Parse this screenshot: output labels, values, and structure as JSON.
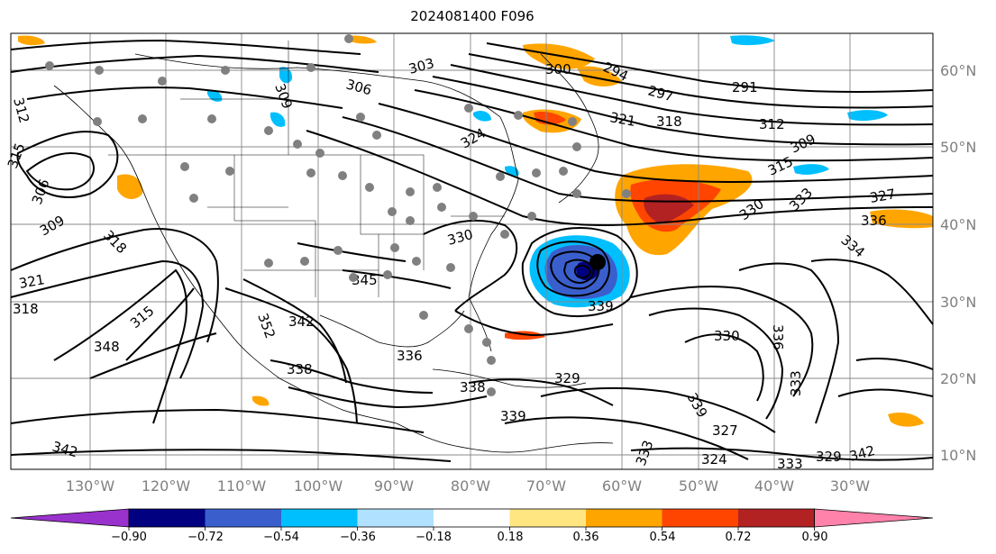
{
  "title": "2024081400 F096",
  "map": {
    "lon_labels": [
      "130°W",
      "120°W",
      "110°W",
      "100°W",
      "90°W",
      "80°W",
      "70°W",
      "60°W",
      "50°W",
      "40°W",
      "30°W"
    ],
    "lat_labels": [
      "60°N",
      "50°N",
      "40°N",
      "30°N",
      "20°N",
      "10°N"
    ],
    "contour_labels": [
      "312",
      "303",
      "309",
      "306",
      "300",
      "294",
      "297",
      "291",
      "312",
      "324",
      "321",
      "318",
      "315",
      "306",
      "309",
      "315",
      "309",
      "327",
      "330",
      "333",
      "336",
      "334",
      "318",
      "321",
      "318",
      "315",
      "348",
      "345",
      "342",
      "352",
      "338",
      "336",
      "330",
      "339",
      "338",
      "329",
      "339",
      "342",
      "336",
      "330",
      "333",
      "339",
      "333",
      "327",
      "324",
      "333",
      "329",
      "342"
    ],
    "low_center_marker": "low-center"
  },
  "colorbar": {
    "tick_labels": [
      "−0.90",
      "−0.72",
      "−0.54",
      "−0.36",
      "−0.18",
      "0.18",
      "0.36",
      "0.54",
      "0.72",
      "0.90"
    ],
    "colors": [
      "#9932cc",
      "#000080",
      "#3a5fcd",
      "#00bfff",
      "#b0e2ff",
      "#ffffff",
      "#ffe680",
      "#ffa500",
      "#ff4500",
      "#b22222",
      "#ff82ab"
    ],
    "extend": "both"
  }
}
